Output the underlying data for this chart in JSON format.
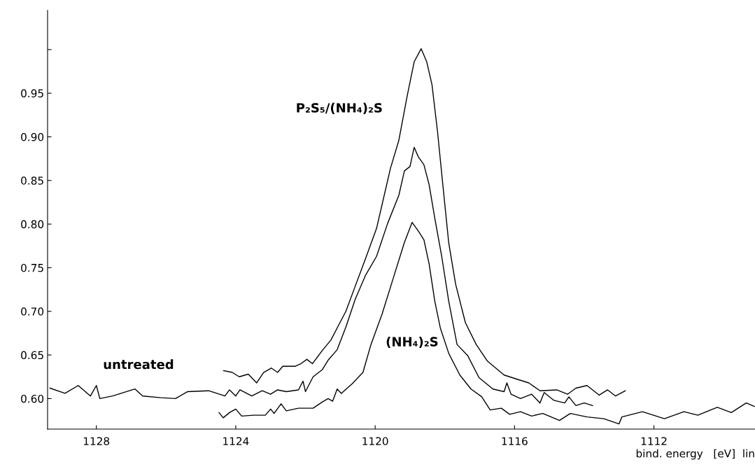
{
  "chart_data": {
    "type": "line",
    "xlabel": "bind. energy   [eV]  lin",
    "xlim": [
      1129.4,
      1109.1
    ],
    "xticks": [
      1128,
      1124,
      1120,
      1116,
      1112
    ],
    "ylim": [
      0.565,
      1.045
    ],
    "yticks": [
      {
        "value": 0.6,
        "label": "0.60"
      },
      0.65,
      {
        "value": 0.7,
        "label": "0.70"
      },
      0.75,
      {
        "value": 0.8,
        "label": "0.80"
      },
      0.85,
      {
        "value": 0.9,
        "label": "0.90"
      },
      0.95,
      {
        "value": 1.0,
        "label": null
      }
    ],
    "grid": false,
    "legend": false,
    "marker": "none",
    "line_style": "solid",
    "series": [
      {
        "name": "untreated",
        "color": "#000000",
        "x": [
          1129.33,
          1128.9,
          1128.52,
          1128.17,
          1128.0,
          1127.9,
          1127.53,
          1126.89,
          1126.67,
          1126.15,
          1125.73,
          1125.38,
          1124.78,
          1124.31,
          1124.18,
          1124.0,
          1123.88,
          1123.54,
          1123.24,
          1123.0,
          1122.8,
          1122.55,
          1122.2,
          1122.07,
          1122.0,
          1121.78,
          1121.52,
          1121.35,
          1121.09,
          1120.84,
          1120.57,
          1120.28,
          1119.96,
          1119.64,
          1119.32,
          1119.16,
          1119.0,
          1118.88,
          1118.76,
          1118.6,
          1118.45,
          1118.29,
          1118.09,
          1117.89,
          1117.65,
          1117.34,
          1117.02,
          1116.62,
          1116.3,
          1116.22,
          1116.1,
          1115.83,
          1115.51,
          1115.27,
          1115.15,
          1114.87,
          1114.56,
          1114.44,
          1114.24,
          1114.0,
          1113.76
        ],
        "values": [
          0.612,
          0.606,
          0.615,
          0.603,
          0.615,
          0.6,
          0.603,
          0.611,
          0.603,
          0.601,
          0.6,
          0.608,
          0.609,
          0.603,
          0.61,
          0.603,
          0.61,
          0.603,
          0.609,
          0.605,
          0.61,
          0.608,
          0.61,
          0.62,
          0.608,
          0.625,
          0.633,
          0.644,
          0.656,
          0.682,
          0.714,
          0.741,
          0.763,
          0.801,
          0.833,
          0.861,
          0.866,
          0.888,
          0.877,
          0.868,
          0.845,
          0.807,
          0.763,
          0.712,
          0.662,
          0.649,
          0.624,
          0.611,
          0.608,
          0.618,
          0.605,
          0.6,
          0.605,
          0.595,
          0.607,
          0.598,
          0.595,
          0.602,
          0.592,
          0.595,
          0.592
        ]
      },
      {
        "name": "P₂S₅/(NH₄)₂S",
        "color": "#000000",
        "x": [
          1124.35,
          1124.1,
          1123.9,
          1123.64,
          1123.4,
          1123.2,
          1122.98,
          1122.8,
          1122.65,
          1122.3,
          1122.13,
          1121.96,
          1121.8,
          1121.5,
          1121.27,
          1121.05,
          1120.84,
          1120.57,
          1120.28,
          1119.96,
          1119.56,
          1119.32,
          1119.08,
          1118.88,
          1118.68,
          1118.52,
          1118.37,
          1118.21,
          1118.05,
          1117.89,
          1117.69,
          1117.41,
          1117.1,
          1116.78,
          1116.3,
          1115.99,
          1115.59,
          1115.27,
          1114.79,
          1114.48,
          1114.24,
          1113.92,
          1113.57,
          1113.33,
          1113.1,
          1112.82
        ],
        "values": [
          0.632,
          0.63,
          0.625,
          0.628,
          0.618,
          0.63,
          0.635,
          0.63,
          0.637,
          0.637,
          0.64,
          0.645,
          0.64,
          0.656,
          0.667,
          0.684,
          0.7,
          0.729,
          0.76,
          0.795,
          0.864,
          0.896,
          0.947,
          0.986,
          1.001,
          0.986,
          0.96,
          0.906,
          0.842,
          0.779,
          0.731,
          0.687,
          0.662,
          0.643,
          0.627,
          0.623,
          0.618,
          0.609,
          0.61,
          0.605,
          0.612,
          0.615,
          0.604,
          0.61,
          0.603,
          0.609
        ]
      },
      {
        "name": "(NH₄)₂S",
        "color": "#000000",
        "x": [
          1124.48,
          1124.36,
          1124.18,
          1124.0,
          1123.83,
          1123.49,
          1123.15,
          1123.0,
          1122.9,
          1122.7,
          1122.55,
          1122.2,
          1121.78,
          1121.52,
          1121.35,
          1121.22,
          1121.09,
          1120.97,
          1120.66,
          1120.35,
          1120.12,
          1119.8,
          1119.48,
          1119.16,
          1118.94,
          1118.76,
          1118.6,
          1118.45,
          1118.29,
          1118.13,
          1117.89,
          1117.57,
          1117.25,
          1116.94,
          1116.7,
          1116.38,
          1116.14,
          1115.83,
          1115.51,
          1115.19,
          1114.71,
          1114.4,
          1113.92,
          1113.44,
          1113.0,
          1112.92,
          1112.33,
          1111.7,
          1111.14,
          1110.74,
          1110.18,
          1109.78,
          1109.35,
          1109.12
        ],
        "values": [
          0.584,
          0.578,
          0.584,
          0.588,
          0.58,
          0.581,
          0.581,
          0.588,
          0.583,
          0.594,
          0.586,
          0.589,
          0.589,
          0.596,
          0.6,
          0.597,
          0.611,
          0.606,
          0.617,
          0.63,
          0.662,
          0.697,
          0.738,
          0.779,
          0.802,
          0.792,
          0.782,
          0.754,
          0.712,
          0.681,
          0.652,
          0.627,
          0.611,
          0.602,
          0.587,
          0.589,
          0.582,
          0.585,
          0.58,
          0.583,
          0.575,
          0.583,
          0.579,
          0.577,
          0.571,
          0.579,
          0.585,
          0.577,
          0.585,
          0.581,
          0.59,
          0.584,
          0.595,
          0.591
        ]
      }
    ]
  }
}
